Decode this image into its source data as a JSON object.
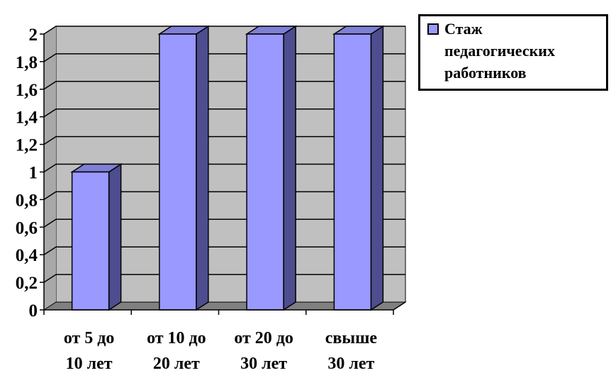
{
  "chart_data": {
    "type": "bar",
    "categories": [
      [
        "от 5 до",
        "10 лет"
      ],
      [
        "от 10 до",
        "20 лет"
      ],
      [
        "от 20 до",
        "30 лет"
      ],
      [
        "свыше",
        "30 лет"
      ]
    ],
    "series": [
      {
        "name": [
          "Стаж",
          "педагогических",
          "работников"
        ],
        "values": [
          1,
          2,
          2,
          2
        ]
      }
    ],
    "ylim": [
      0,
      2
    ],
    "yticks": [
      "0",
      "0,2",
      "0,4",
      "0,6",
      "0,8",
      "1",
      "1,2",
      "1,4",
      "1,6",
      "1,8",
      "2"
    ],
    "grid": true,
    "legend_position": "top-right",
    "three_d": true,
    "colors": {
      "bar_front": "#9999ff",
      "bar_side": "#4d4d8f",
      "bar_top": "#7f7fd6",
      "plot_wall": "#c0c0c0",
      "floor": "#808080",
      "gridline": "#000000"
    }
  }
}
